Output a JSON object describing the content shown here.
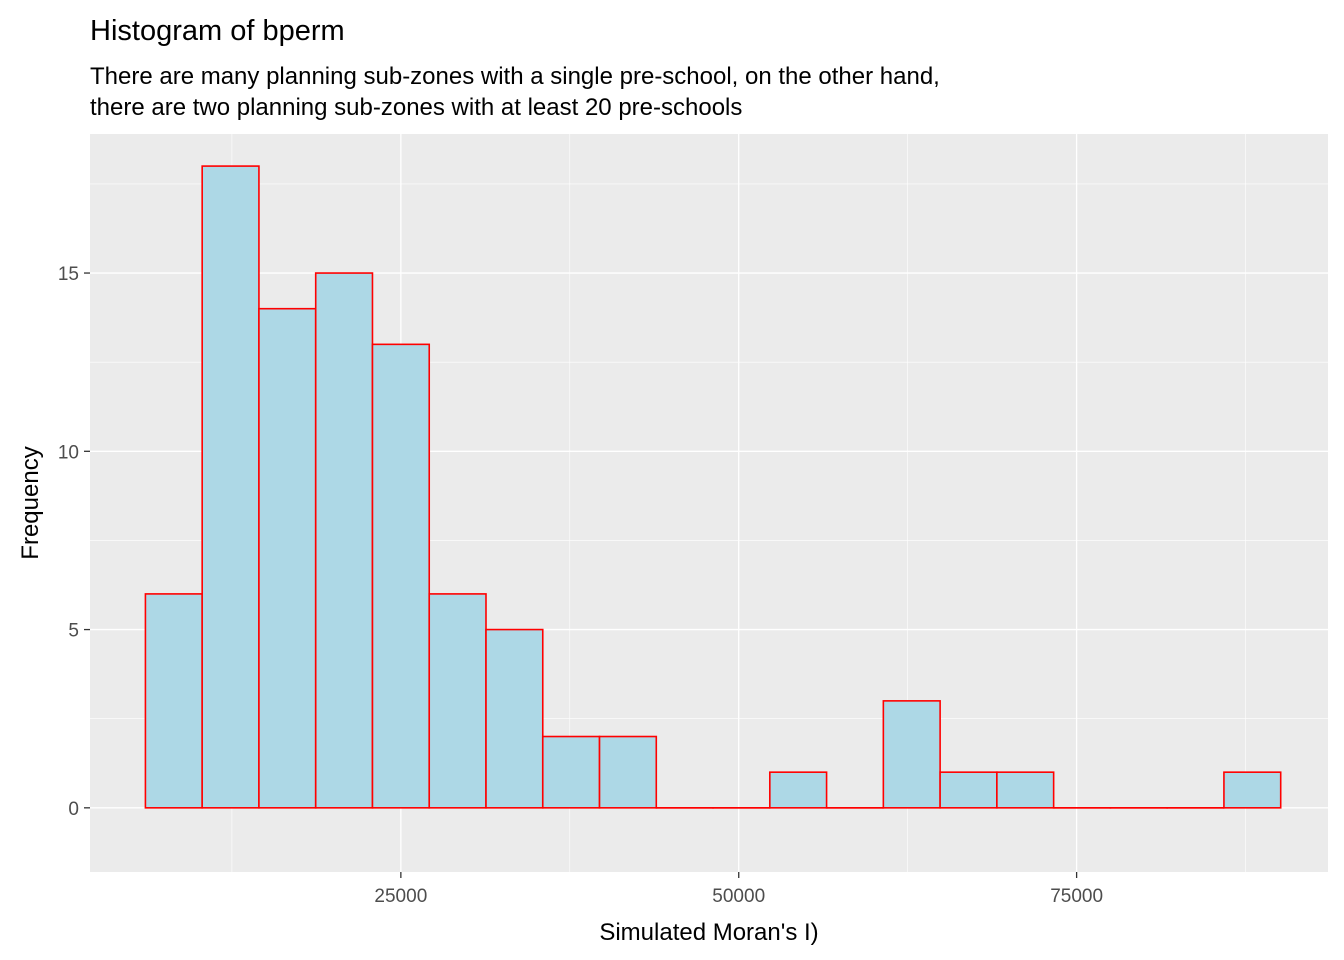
{
  "chart_data": {
    "type": "bar",
    "title": "Histogram of bperm",
    "subtitle_lines": [
      "There are many planning sub-zones with a single pre-school, on the other hand,",
      "there are two planning sub-zones with at least 20 pre-schools"
    ],
    "xlabel": "Simulated Moran's I)",
    "ylabel": "Frequency",
    "xlim": [
      2000,
      93600
    ],
    "ylim": [
      -1.8,
      18.9
    ],
    "x_ticks": [
      25000,
      50000,
      75000
    ],
    "x_tick_labels": [
      "25000",
      "50000",
      "75000"
    ],
    "x_minor_ticks": [
      12500,
      37500,
      62500,
      87500
    ],
    "y_ticks": [
      0,
      5,
      10,
      15
    ],
    "y_tick_labels": [
      "0",
      "5",
      "10",
      "15"
    ],
    "y_minor_ticks": [
      2.5,
      7.5,
      12.5,
      17.5
    ],
    "bar_fill": "#add8e6",
    "bar_outline": "#ff0000",
    "panel_background": "#ebebeb",
    "grid_color": "#ffffff",
    "grid": true,
    "legend": "none",
    "bins": [
      {
        "x0": 6100,
        "x1": 10300,
        "count": 6
      },
      {
        "x0": 10300,
        "x1": 14500,
        "count": 18
      },
      {
        "x0": 14500,
        "x1": 18700,
        "count": 14
      },
      {
        "x0": 18700,
        "x1": 22900,
        "count": 15
      },
      {
        "x0": 22900,
        "x1": 27100,
        "count": 13
      },
      {
        "x0": 27100,
        "x1": 31300,
        "count": 6
      },
      {
        "x0": 31300,
        "x1": 35500,
        "count": 5
      },
      {
        "x0": 35500,
        "x1": 39700,
        "count": 2
      },
      {
        "x0": 39700,
        "x1": 43900,
        "count": 2
      },
      {
        "x0": 43900,
        "x1": 48100,
        "count": 0
      },
      {
        "x0": 48100,
        "x1": 52300,
        "count": 0
      },
      {
        "x0": 52300,
        "x1": 56500,
        "count": 1
      },
      {
        "x0": 56500,
        "x1": 60700,
        "count": 0
      },
      {
        "x0": 60700,
        "x1": 64900,
        "count": 3
      },
      {
        "x0": 64900,
        "x1": 69100,
        "count": 1
      },
      {
        "x0": 69100,
        "x1": 73300,
        "count": 1
      },
      {
        "x0": 73300,
        "x1": 77500,
        "count": 0
      },
      {
        "x0": 77500,
        "x1": 81700,
        "count": 0
      },
      {
        "x0": 81700,
        "x1": 85900,
        "count": 0
      },
      {
        "x0": 85900,
        "x1": 90100,
        "count": 1
      }
    ]
  }
}
